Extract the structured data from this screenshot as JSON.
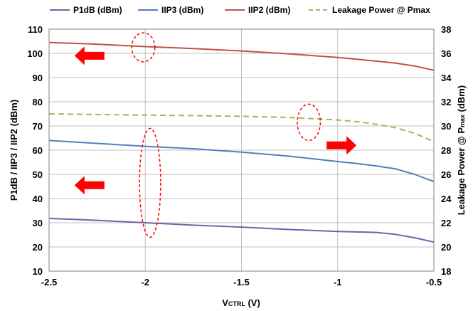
{
  "chart_data": {
    "type": "line",
    "xlabel": {
      "main": "V",
      "sub": "CTRL",
      "tail": " (V)"
    },
    "ylabel": "P1dB / IIP3 / IIP2 (dBm)",
    "y2label": {
      "main": "Leakage Power @ P",
      "sub": "max",
      "tail": " (dBm)"
    },
    "xlim": [
      -2.5,
      -0.5
    ],
    "ylim": [
      10,
      110
    ],
    "y2lim": [
      18,
      38
    ],
    "xticks": [
      "-2.5",
      "-2",
      "-1.5",
      "-1",
      "-0.5"
    ],
    "yticks": [
      "10",
      "20",
      "30",
      "40",
      "50",
      "60",
      "70",
      "80",
      "90",
      "100",
      "110"
    ],
    "y2ticks": [
      "18",
      "20",
      "22",
      "24",
      "26",
      "28",
      "30",
      "32",
      "34",
      "36",
      "38"
    ],
    "grid": "vertical and horizontal major gridlines",
    "legend_position": "top",
    "series": [
      {
        "name": "P1dB (dBm)",
        "axis": "left",
        "color": "#7b5ea7",
        "dash": "solid",
        "x": [
          -2.5,
          -2.25,
          -2.0,
          -1.75,
          -1.5,
          -1.25,
          -1.0,
          -0.9,
          -0.8,
          -0.7,
          -0.6,
          -0.5
        ],
        "y": [
          31.8,
          31.0,
          30.0,
          29.0,
          28.2,
          27.2,
          26.4,
          26.2,
          26.0,
          25.2,
          23.8,
          22.0
        ]
      },
      {
        "name": "IIP3 (dBm)",
        "axis": "left",
        "color": "#4f81bd",
        "dash": "solid",
        "x": [
          -2.5,
          -2.25,
          -2.0,
          -1.75,
          -1.5,
          -1.25,
          -1.0,
          -0.9,
          -0.8,
          -0.7,
          -0.6,
          -0.5
        ],
        "y": [
          64.0,
          62.8,
          61.6,
          60.6,
          59.2,
          57.5,
          55.3,
          54.5,
          53.5,
          52.3,
          50.0,
          47.0
        ]
      },
      {
        "name": "IIP2 (dBm)",
        "axis": "left",
        "color": "#c0504d",
        "dash": "solid",
        "x": [
          -2.5,
          -2.25,
          -2.0,
          -1.75,
          -1.5,
          -1.25,
          -1.0,
          -0.9,
          -0.8,
          -0.7,
          -0.6,
          -0.5
        ],
        "y": [
          104.5,
          103.8,
          102.8,
          102.0,
          101.0,
          99.8,
          98.3,
          97.6,
          96.8,
          96.0,
          94.8,
          93.0
        ]
      },
      {
        "name": "Leakage Power @ Pmax",
        "axis": "right",
        "color": "#9bbb59",
        "dash": "dashed",
        "x": [
          -2.5,
          -2.25,
          -2.0,
          -1.75,
          -1.5,
          -1.25,
          -1.0,
          -0.9,
          -0.8,
          -0.7,
          -0.6,
          -0.5
        ],
        "y": [
          31.0,
          30.95,
          30.9,
          30.85,
          30.8,
          30.7,
          30.5,
          30.35,
          30.15,
          29.85,
          29.4,
          28.7
        ]
      }
    ],
    "annotations": [
      {
        "type": "arrow",
        "direction": "left",
        "color": "#ff0000",
        "meaning": "IIP2 uses left axis",
        "x": -2.29,
        "y": 99.0
      },
      {
        "type": "arrow",
        "direction": "left",
        "color": "#ff0000",
        "meaning": "IIP3 / P1dB use left axis",
        "x": -2.29,
        "y": 45.5
      },
      {
        "type": "arrow",
        "direction": "right",
        "color": "#ff0000",
        "meaning": "Leakage power uses right axis",
        "x": -0.98,
        "y": 28.4
      },
      {
        "type": "ellipse",
        "style": "dashed",
        "color": "#ff0000",
        "x": -2.01,
        "y": 102.5,
        "rx": 0.06,
        "ry": 6.0
      },
      {
        "type": "ellipse",
        "style": "dashed",
        "color": "#ff0000",
        "x": -1.975,
        "y": 46.5,
        "rx": 0.055,
        "ry": 22.5
      },
      {
        "type": "ellipse",
        "style": "dashed",
        "color": "#ff0000",
        "x": -1.15,
        "y": 71.5,
        "rx": 0.06,
        "ry": 7.5
      }
    ]
  }
}
